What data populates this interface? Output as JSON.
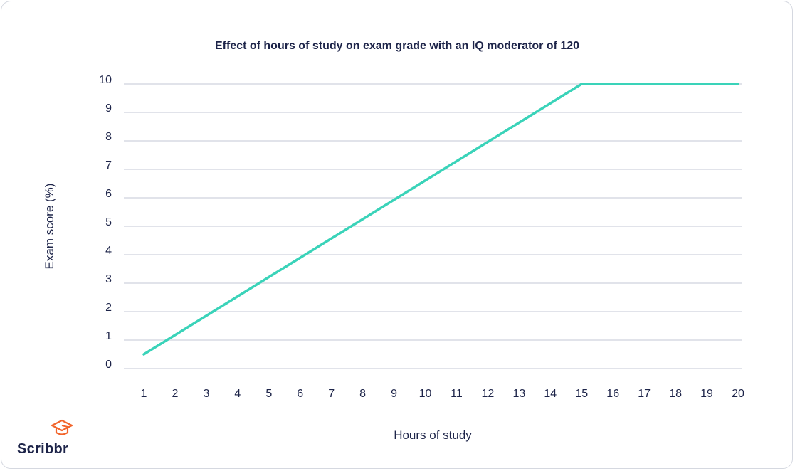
{
  "chart_data": {
    "type": "line",
    "title": "Effect of hours of study on exam grade with an IQ moderator of",
    "title_emphasis": "120",
    "xlabel": "Hours of study",
    "ylabel": "Exam score (%)",
    "x": [
      1,
      2,
      3,
      4,
      5,
      6,
      7,
      8,
      9,
      10,
      11,
      12,
      13,
      14,
      15,
      16,
      17,
      18,
      19,
      20
    ],
    "y_ticks": [
      0,
      1,
      2,
      3,
      4,
      5,
      6,
      7,
      8,
      9,
      10
    ],
    "xlim": [
      1,
      20
    ],
    "ylim": [
      0,
      10
    ],
    "grid": "horizontal",
    "series": [
      {
        "points": [
          [
            1,
            0.5
          ],
          [
            15,
            10
          ],
          [
            20,
            10
          ]
        ],
        "color": "#3ad3b9"
      }
    ]
  },
  "colors": {
    "line": "#3ad3b9",
    "grid": "#d7dae3",
    "text": "#1d2449",
    "logo": "#f2652c"
  },
  "logo": {
    "text": "Scribbr",
    "icon": "graduation-cap-icon"
  }
}
